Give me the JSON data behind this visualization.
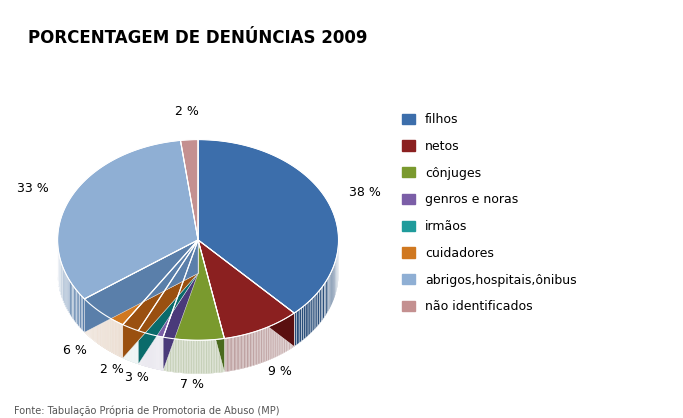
{
  "title": "PORCENTAGEM DE DENÚNCIAS 2009",
  "labels": [
    "filhos",
    "netos",
    "cônjuges",
    "genros e noras",
    "irmãos",
    "cuidadores",
    "abrigos,hospitais,ônibus",
    "não identificados"
  ],
  "values": [
    38,
    9,
    7,
    3,
    2,
    6,
    33,
    2
  ],
  "colors": [
    "#3C6EAB",
    "#8B2020",
    "#7A9A2E",
    "#7B5EA7",
    "#1F9B9B",
    "#D07820",
    "#8FAFD4",
    "#C49090"
  ],
  "dark_colors": [
    "#2A4E7A",
    "#5A1010",
    "#4A6A1E",
    "#4A3A7A",
    "#0A6B6B",
    "#9A5010",
    "#5A7FAA",
    "#A46060"
  ],
  "startangle": 90,
  "title_fontsize": 12,
  "legend_fontsize": 9,
  "depth": 0.15,
  "footnote": "Fonte: Tabulação Própria de Promotoria de Abuso (MP)"
}
